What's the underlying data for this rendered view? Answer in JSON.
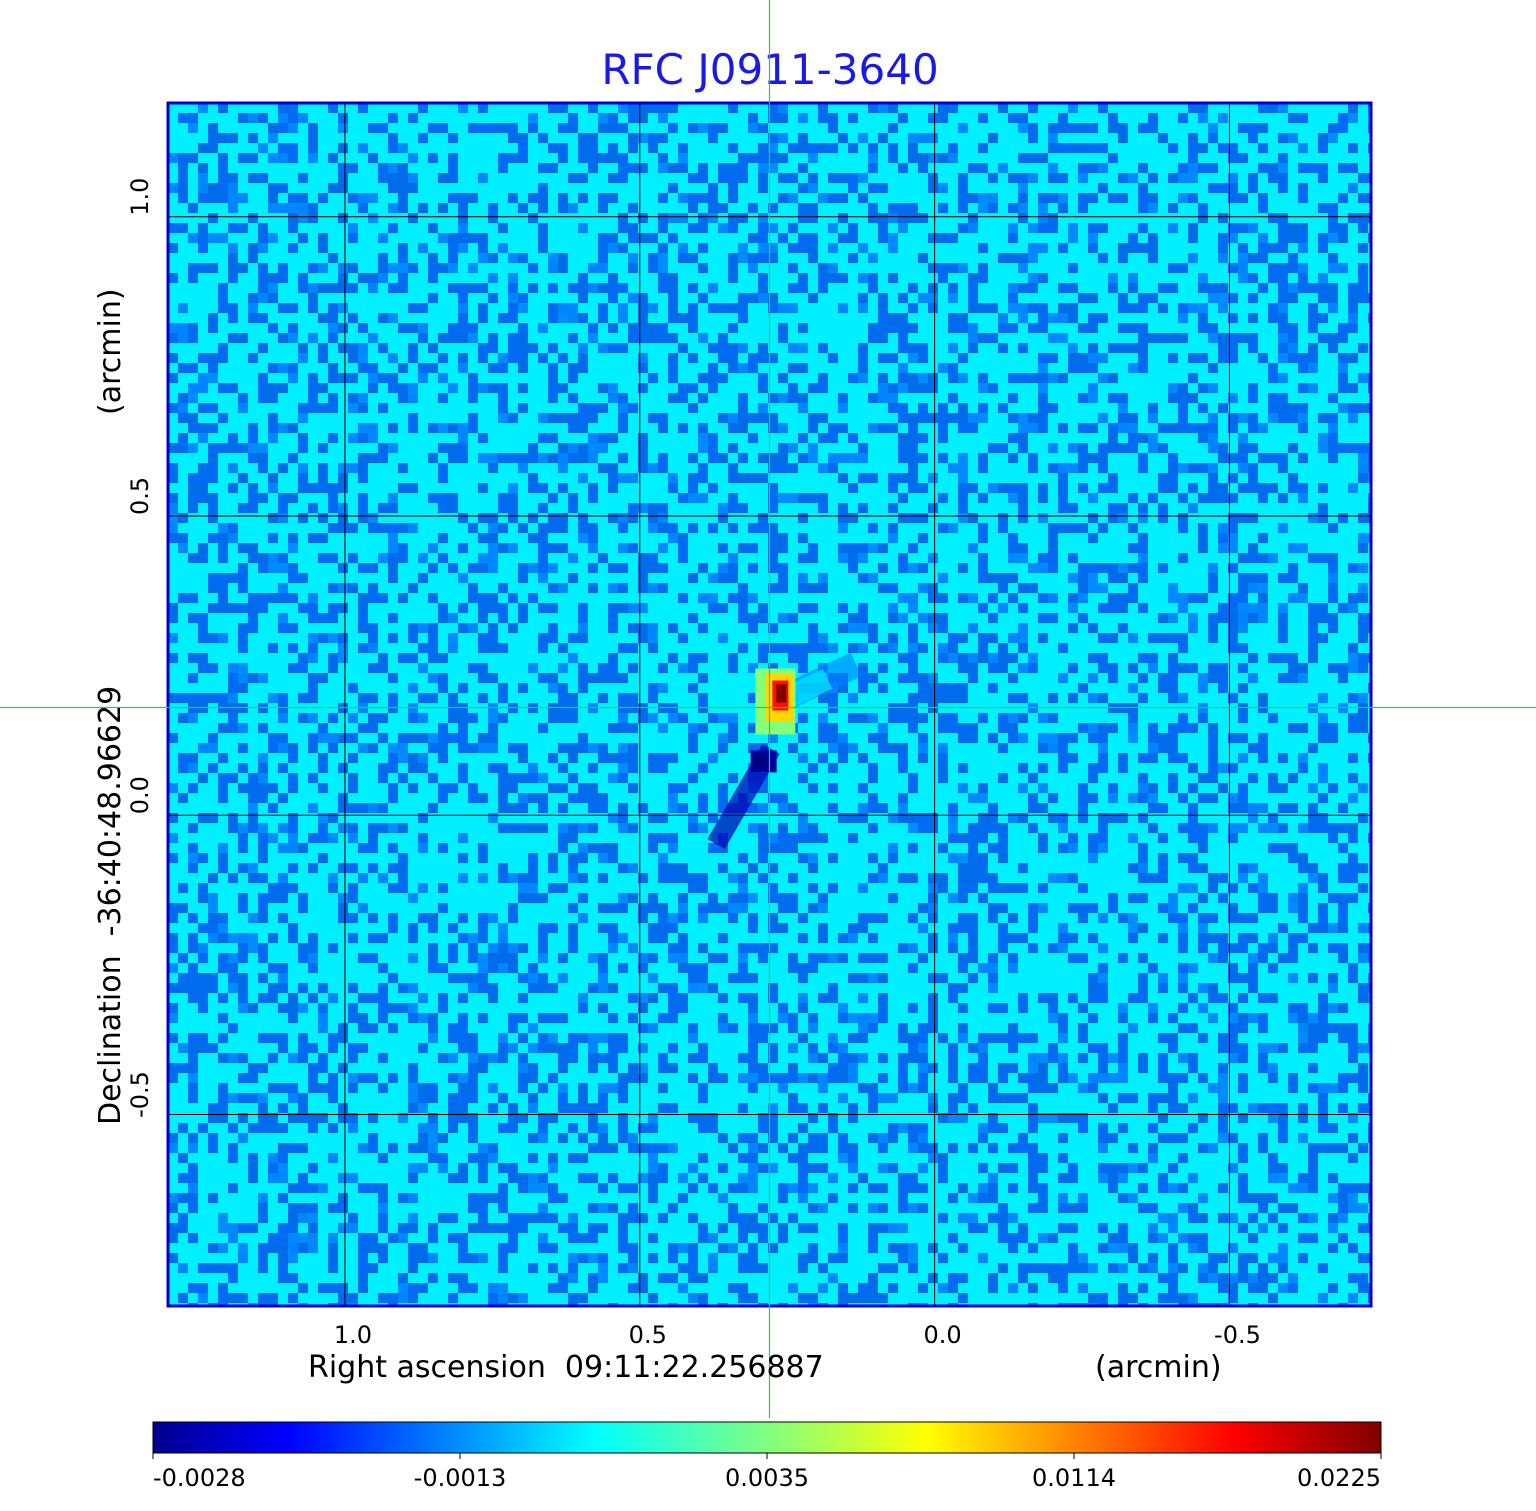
{
  "chart_data": {
    "type": "heatmap",
    "title": "RFC J0911-3640",
    "xlabel": "Right ascension  09:11:22.256887",
    "xunit": "(arcmin)",
    "ylabel": "Declination  -36:40:48.96629",
    "yunit": "(arcmin)",
    "x_ticks": [
      "1.0",
      "0.5",
      "0.0",
      "-0.5"
    ],
    "y_ticks": [
      "1.0",
      "0.5",
      "0.0",
      "-0.5"
    ],
    "xlim": [
      1.3,
      -0.74
    ],
    "ylim": [
      -0.82,
      1.19
    ],
    "grid": true,
    "crosshair": {
      "x": 0.28,
      "y": 0.18
    },
    "colormap": "jet",
    "colorbar": {
      "ticks": [
        "-0.0028",
        "-0.0013",
        "0.0035",
        "0.0114",
        "0.0225"
      ],
      "range": [
        -0.0028,
        0.0225
      ]
    },
    "source_peak": {
      "x": 0.27,
      "y": 0.19,
      "value": 0.0225
    },
    "negative_dip": {
      "x": 0.29,
      "y": 0.09,
      "value": -0.0028
    },
    "background_level": 0.0005
  },
  "colors": {
    "title": "#1a1ae6",
    "frame": "#0000cc",
    "crosshair": "#33cc33",
    "grid": "#000000"
  }
}
